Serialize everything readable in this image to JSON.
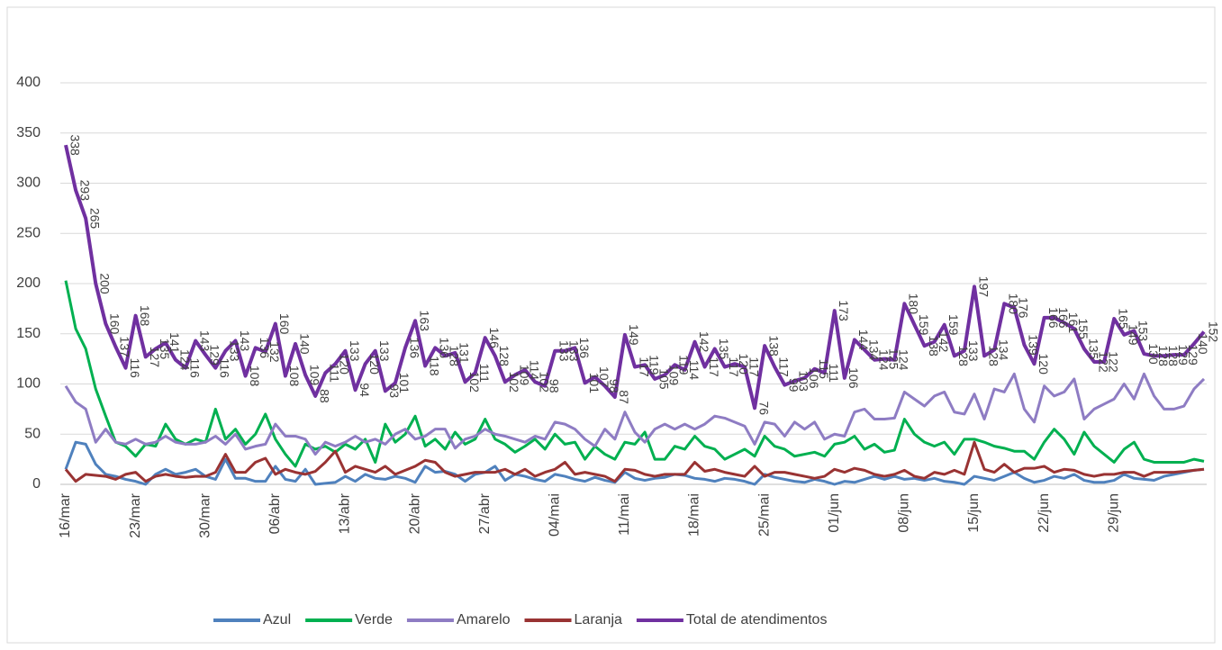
{
  "chart_data": {
    "type": "line",
    "categories": [
      "16/mar",
      null,
      null,
      null,
      null,
      null,
      null,
      "23/mar",
      null,
      null,
      null,
      null,
      null,
      null,
      "30/mar",
      null,
      null,
      null,
      null,
      null,
      null,
      "06/abr",
      null,
      null,
      null,
      null,
      null,
      null,
      "13/abr",
      null,
      null,
      null,
      null,
      null,
      null,
      "20/abr",
      null,
      null,
      null,
      null,
      null,
      null,
      "27/abr",
      null,
      null,
      null,
      null,
      null,
      null,
      "04/mai",
      null,
      null,
      null,
      null,
      null,
      null,
      "11/mai",
      null,
      null,
      null,
      null,
      null,
      null,
      "18/mai",
      null,
      null,
      null,
      null,
      null,
      null,
      "25/mai",
      null,
      null,
      null,
      null,
      null,
      null,
      "01/jun",
      null,
      null,
      null,
      null,
      null,
      null,
      "08/jun",
      null,
      null,
      null,
      null,
      null,
      null,
      "15/jun",
      null,
      null,
      null,
      null,
      null,
      null,
      "22/jun",
      null,
      null,
      null,
      null,
      null,
      null,
      "29/jun",
      null,
      null,
      null,
      null,
      null,
      null,
      null,
      null,
      null
    ],
    "series": [
      {
        "name": "Azul",
        "color": "#4f81bd",
        "values": [
          15,
          42,
          40,
          20,
          10,
          8,
          5,
          3,
          0,
          10,
          15,
          10,
          12,
          15,
          8,
          5,
          25,
          6,
          6,
          3,
          3,
          18,
          5,
          3,
          15,
          0,
          1,
          2,
          8,
          3,
          10,
          6,
          5,
          8,
          6,
          2,
          18,
          12,
          13,
          10,
          3,
          10,
          12,
          18,
          4,
          10,
          8,
          5,
          3,
          10,
          8,
          5,
          3,
          7,
          4,
          2,
          12,
          6,
          4,
          6,
          7,
          10,
          9,
          6,
          5,
          3,
          6,
          5,
          3,
          0,
          10,
          7,
          5,
          3,
          2,
          5,
          3,
          0,
          3,
          2,
          5,
          8,
          5,
          8,
          5,
          6,
          4,
          6,
          3,
          2,
          0,
          8,
          6,
          4,
          8,
          12,
          6,
          2,
          4,
          8,
          6,
          10,
          4,
          2,
          2,
          4,
          10,
          6,
          5,
          4,
          8,
          10,
          12,
          14,
          15
        ]
      },
      {
        "name": "Verde",
        "color": "#00b050",
        "values": [
          203,
          155,
          135,
          95,
          68,
          42,
          38,
          28,
          40,
          38,
          60,
          45,
          40,
          45,
          42,
          75,
          45,
          55,
          40,
          50,
          70,
          45,
          30,
          18,
          40,
          35,
          38,
          32,
          40,
          35,
          45,
          22,
          60,
          42,
          50,
          68,
          38,
          45,
          35,
          52,
          40,
          45,
          65,
          45,
          40,
          32,
          38,
          45,
          35,
          50,
          40,
          42,
          25,
          38,
          30,
          25,
          42,
          40,
          52,
          25,
          25,
          38,
          35,
          48,
          38,
          35,
          25,
          30,
          35,
          28,
          48,
          38,
          35,
          28,
          30,
          32,
          28,
          40,
          42,
          48,
          35,
          40,
          32,
          34,
          65,
          50,
          42,
          38,
          42,
          30,
          45,
          45,
          42,
          38,
          36,
          33,
          33,
          25,
          42,
          55,
          45,
          30,
          52,
          38,
          30,
          22,
          35,
          42,
          25,
          22,
          22,
          22,
          22,
          25,
          23
        ]
      },
      {
        "name": "Amarelo",
        "color": "#8e7cc3",
        "values": [
          98,
          82,
          75,
          42,
          55,
          42,
          40,
          45,
          40,
          42,
          48,
          42,
          40,
          40,
          42,
          48,
          40,
          50,
          35,
          38,
          40,
          60,
          48,
          48,
          45,
          30,
          42,
          38,
          42,
          48,
          42,
          45,
          40,
          50,
          55,
          45,
          48,
          55,
          55,
          36,
          45,
          48,
          55,
          50,
          48,
          45,
          42,
          48,
          45,
          62,
          60,
          55,
          45,
          38,
          55,
          45,
          72,
          52,
          42,
          55,
          60,
          55,
          60,
          55,
          60,
          68,
          66,
          62,
          58,
          40,
          62,
          60,
          48,
          62,
          55,
          62,
          45,
          50,
          48,
          72,
          75,
          65,
          65,
          66,
          92,
          85,
          78,
          88,
          92,
          72,
          70,
          90,
          65,
          95,
          92,
          110,
          75,
          62,
          98,
          88,
          92,
          105,
          65,
          75,
          80,
          85,
          100,
          85,
          110,
          88,
          75,
          75,
          78,
          95,
          105
        ]
      },
      {
        "name": "Laranja",
        "color": "#993333",
        "values": [
          15,
          3,
          10,
          9,
          8,
          5,
          10,
          12,
          3,
          8,
          10,
          8,
          7,
          8,
          8,
          12,
          30,
          12,
          12,
          22,
          26,
          10,
          15,
          12,
          10,
          13,
          22,
          33,
          12,
          18,
          15,
          12,
          18,
          10,
          14,
          18,
          24,
          22,
          12,
          8,
          10,
          12,
          12,
          12,
          15,
          10,
          15,
          8,
          12,
          15,
          22,
          10,
          12,
          10,
          8,
          3,
          15,
          14,
          10,
          8,
          10,
          10,
          10,
          22,
          13,
          15,
          12,
          10,
          8,
          18,
          8,
          12,
          12,
          10,
          8,
          6,
          8,
          15,
          12,
          16,
          14,
          10,
          8,
          10,
          14,
          8,
          6,
          12,
          10,
          14,
          10,
          42,
          15,
          12,
          20,
          12,
          16,
          16,
          18,
          12,
          15,
          14,
          10,
          8,
          10,
          10,
          12,
          12,
          8,
          12,
          12,
          12,
          13,
          14,
          15
        ]
      },
      {
        "name": "Total de atendimentos",
        "color": "#7030a0",
        "values": [
          338,
          293,
          265,
          200,
          160,
          137,
          116,
          168,
          127,
          135,
          141,
          124,
          116,
          143,
          129,
          116,
          133,
          143,
          108,
          136,
          132,
          160,
          108,
          140,
          109,
          88,
          111,
          120,
          133,
          94,
          120,
          133,
          93,
          101,
          136,
          163,
          118,
          136,
          128,
          131,
          102,
          111,
          146,
          128,
          102,
          109,
          114,
          102,
          98,
          133,
          133,
          136,
          101,
          107,
          98,
          87,
          149,
          117,
          119,
          105,
          109,
          119,
          114,
          142,
          117,
          135,
          117,
          120,
          117,
          76,
          138,
          117,
          99,
          103,
          106,
          115,
          111,
          173,
          106,
          144,
          134,
          124,
          125,
          124,
          180,
          159,
          138,
          142,
          159,
          128,
          133,
          197,
          128,
          134,
          180,
          176,
          139,
          120,
          166,
          166,
          161,
          155,
          135,
          122,
          122,
          165,
          149,
          153,
          130,
          128,
          128,
          129,
          129,
          140,
          152
        ]
      }
    ],
    "ylim": [
      0,
      400
    ],
    "yticks": [
      0,
      50,
      100,
      150,
      200,
      250,
      300,
      350,
      400
    ],
    "grid": true,
    "legend": "bottom"
  }
}
